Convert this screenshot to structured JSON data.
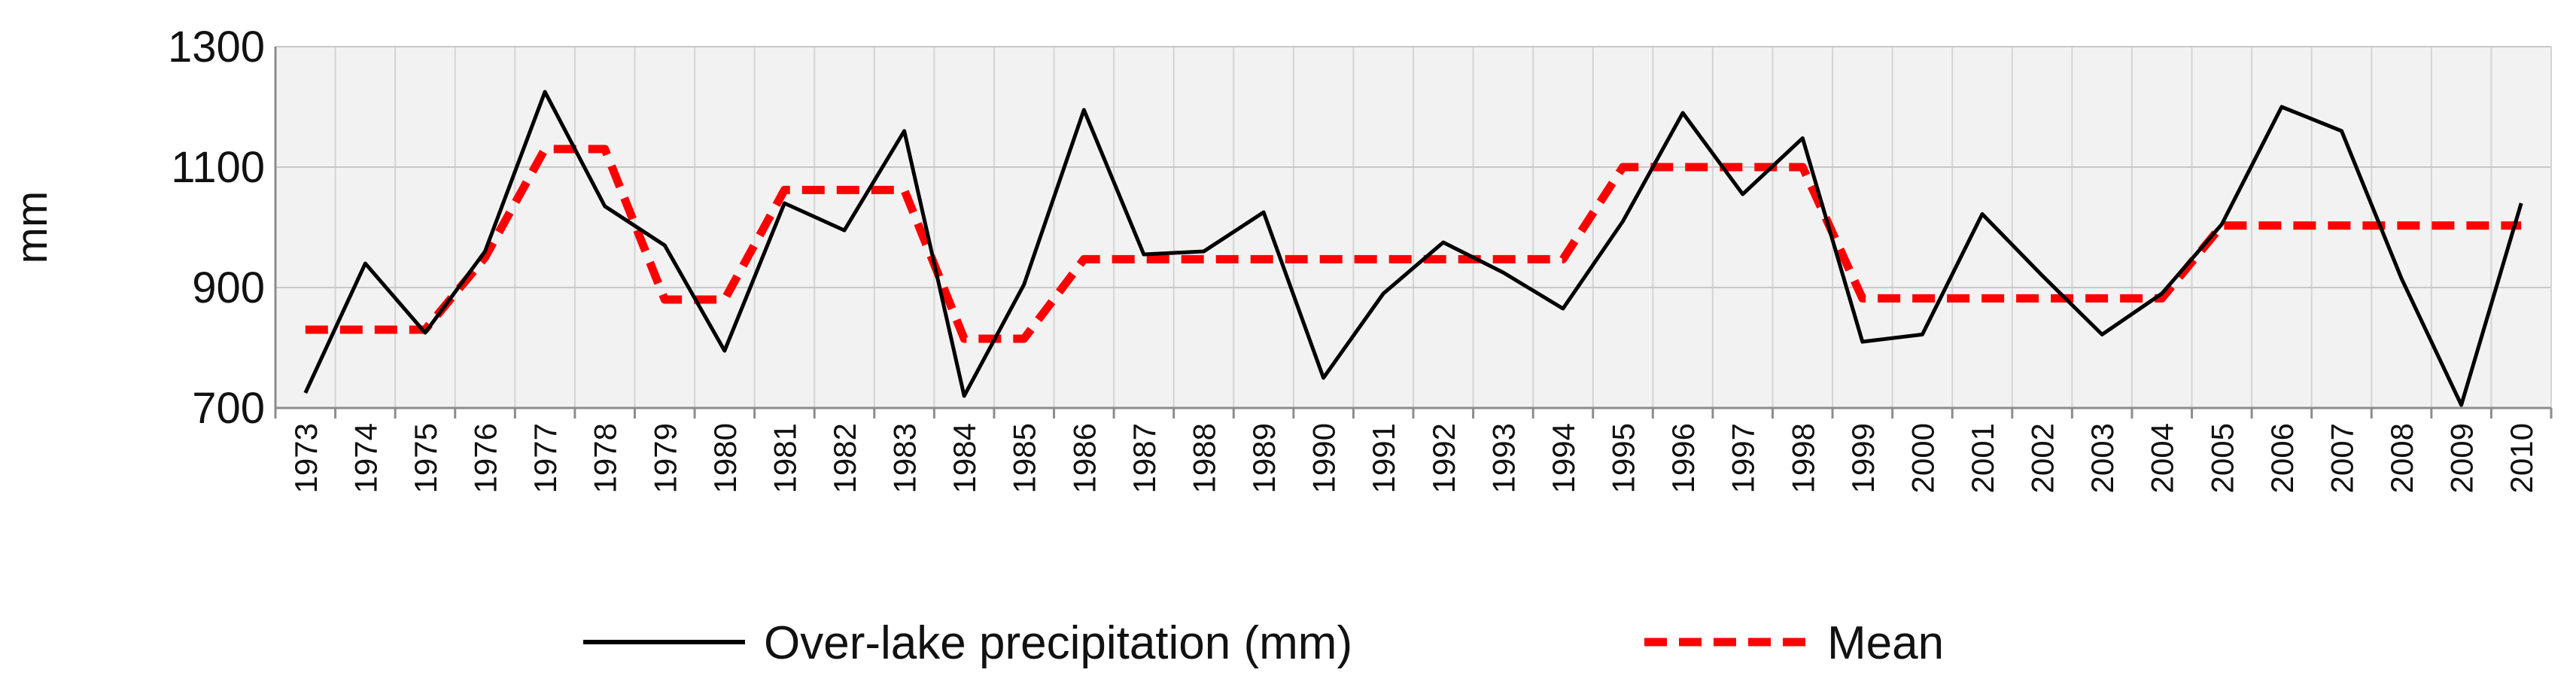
{
  "chart_data": {
    "type": "line",
    "title": "",
    "xlabel": "",
    "ylabel": "mm",
    "ylim": [
      700,
      1300
    ],
    "yticks": [
      700,
      900,
      1100,
      1300
    ],
    "grid": true,
    "legend_position": "bottom",
    "x": [
      "1973",
      "1974",
      "1975",
      "1976",
      "1977",
      "1978",
      "1979",
      "1980",
      "1981",
      "1982",
      "1983",
      "1984",
      "1985",
      "1986",
      "1987",
      "1988",
      "1989",
      "1990",
      "1991",
      "1992",
      "1993",
      "1994",
      "1995",
      "1996",
      "1997",
      "1998",
      "1999",
      "2000",
      "2001",
      "2002",
      "2003",
      "2004",
      "2005",
      "2006",
      "2007",
      "2008",
      "2009",
      "2010"
    ],
    "series": [
      {
        "name": "Over-lake precipitation (mm)",
        "color": "#000000",
        "style": "solid",
        "values": [
          725,
          940,
          825,
          960,
          1225,
          1035,
          970,
          795,
          1040,
          995,
          1160,
          720,
          905,
          1195,
          955,
          960,
          1025,
          750,
          890,
          975,
          925,
          865,
          1010,
          1190,
          1055,
          1148,
          810,
          822,
          1022,
          920,
          822,
          890,
          1005,
          1200,
          1160,
          915,
          705,
          1040
        ]
      },
      {
        "name": "Mean",
        "color": "#ff0000",
        "style": "dashed",
        "values": [
          830,
          830,
          830,
          950,
          1130,
          1130,
          880,
          880,
          1062,
          1062,
          1062,
          815,
          815,
          947,
          947,
          947,
          947,
          947,
          947,
          947,
          947,
          947,
          1100,
          1100,
          1100,
          1100,
          882,
          882,
          882,
          882,
          882,
          882,
          1003,
          1003,
          1003,
          1003,
          1003,
          1003
        ]
      }
    ]
  }
}
